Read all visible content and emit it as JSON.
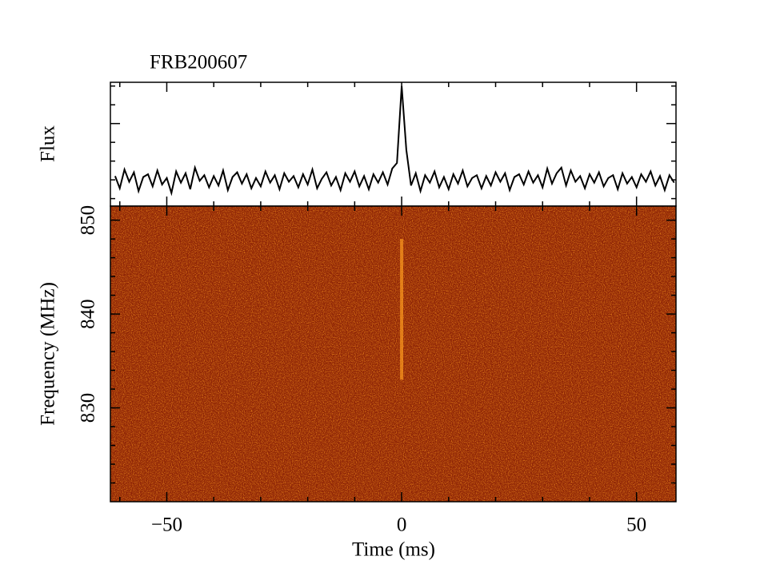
{
  "chart_data": [
    {
      "type": "line",
      "title": "FRB200607",
      "ylabel": "Flux",
      "x": [
        -61,
        -60,
        -59,
        -58,
        -57,
        -56,
        -55,
        -54,
        -53,
        -52,
        -51,
        -50,
        -49,
        -48,
        -47,
        -46,
        -45,
        -44,
        -43,
        -42,
        -41,
        -40,
        -39,
        -38,
        -37,
        -36,
        -35,
        -34,
        -33,
        -32,
        -31,
        -30,
        -29,
        -28,
        -27,
        -26,
        -25,
        -24,
        -23,
        -22,
        -21,
        -20,
        -19,
        -18,
        -17,
        -16,
        -15,
        -14,
        -13,
        -12,
        -11,
        -10,
        -9,
        -8,
        -7,
        -6,
        -5,
        -4,
        -3,
        -2,
        -1,
        0,
        1,
        2,
        3,
        4,
        5,
        6,
        7,
        8,
        9,
        10,
        11,
        12,
        13,
        14,
        15,
        16,
        17,
        18,
        19,
        20,
        21,
        22,
        23,
        24,
        25,
        26,
        27,
        28,
        29,
        30,
        31,
        32,
        33,
        34,
        35,
        36,
        37,
        38,
        39,
        40,
        41,
        42,
        43,
        44,
        45,
        46,
        47,
        48,
        49,
        50,
        51,
        52,
        53,
        54,
        55,
        56,
        57,
        58
      ],
      "series": [
        {
          "color": "#000000",
          "values": [
            0.04,
            -0.09,
            0.11,
            -0.02,
            0.08,
            -0.12,
            0.03,
            0.06,
            -0.07,
            0.1,
            -0.05,
            0.02,
            -0.14,
            0.09,
            -0.03,
            0.07,
            -0.1,
            0.13,
            -0.01,
            0.05,
            -0.08,
            0.04,
            -0.06,
            0.1,
            -0.11,
            0.03,
            0.08,
            -0.04,
            0.06,
            -0.09,
            0.02,
            -0.07,
            0.09,
            -0.03,
            0.05,
            -0.1,
            0.07,
            -0.02,
            0.04,
            -0.08,
            0.06,
            -0.05,
            0.11,
            -0.09,
            0.01,
            0.08,
            -0.06,
            0.03,
            -0.11,
            0.07,
            -0.02,
            0.09,
            -0.07,
            0.04,
            -0.1,
            0.06,
            -0.03,
            0.08,
            -0.05,
            0.12,
            0.18,
            1.0,
            0.32,
            -0.06,
            0.07,
            -0.12,
            0.05,
            -0.03,
            0.09,
            -0.08,
            0.03,
            -0.1,
            0.06,
            -0.04,
            0.1,
            -0.07,
            0.02,
            0.05,
            -0.09,
            0.04,
            -0.06,
            0.08,
            -0.02,
            0.07,
            -0.11,
            0.03,
            0.06,
            -0.05,
            0.09,
            -0.03,
            0.05,
            -0.08,
            0.12,
            -0.04,
            0.07,
            0.13,
            -0.06,
            0.1,
            -0.02,
            0.04,
            -0.09,
            0.06,
            -0.03,
            0.08,
            -0.07,
            0.02,
            0.05,
            -0.1,
            0.07,
            -0.04,
            0.03,
            -0.08,
            0.06,
            -0.02,
            0.09,
            -0.06,
            0.04,
            -0.11,
            0.05,
            -0.03
          ]
        }
      ],
      "xlim": [
        -62,
        58.4
      ],
      "ylim": [
        -0.28,
        1.04
      ],
      "xticks": [
        -50,
        0,
        50
      ],
      "xminorticks": [
        -60,
        -40,
        -30,
        -20,
        -10,
        10,
        20,
        30,
        40
      ],
      "yticks": [
        0.6
      ],
      "yminorticks": [
        -0.2,
        0,
        0.2,
        0.4,
        0.8,
        1.0
      ]
    },
    {
      "type": "heatmap",
      "xlabel": "Time (ms)",
      "ylabel": "Frequency (MHz)",
      "xlim": [
        -62,
        58.4
      ],
      "ylim": [
        820,
        851.5
      ],
      "xticks": [
        {
          "value": -50,
          "label": "−50"
        },
        0,
        50
      ],
      "xminorticks": [
        -60,
        -40,
        -30,
        -20,
        -10,
        10,
        20,
        30,
        40
      ],
      "yticks": [
        830,
        840,
        850
      ],
      "yminorticks": [
        822,
        824,
        826,
        828,
        832,
        834,
        836,
        838,
        842,
        844,
        846,
        848
      ],
      "colormap": [
        "#8e2406",
        "#ff9c20"
      ],
      "burst": {
        "time": 0,
        "freq_range": [
          833,
          848
        ]
      }
    }
  ]
}
